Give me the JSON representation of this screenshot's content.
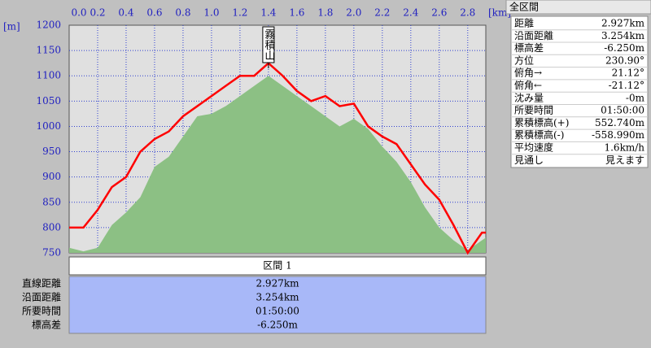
{
  "chart_data": {
    "type": "line",
    "x": [
      0,
      0.1,
      0.2,
      0.3,
      0.4,
      0.5,
      0.6,
      0.7,
      0.8,
      0.9,
      1.0,
      1.1,
      1.2,
      1.3,
      1.4,
      1.5,
      1.6,
      1.7,
      1.8,
      1.9,
      2.0,
      2.1,
      2.2,
      2.3,
      2.4,
      2.5,
      2.6,
      2.7,
      2.8,
      2.9,
      2.927
    ],
    "series": [
      {
        "type": "area",
        "color": "#8cc084",
        "values": [
          760,
          753,
          760,
          805,
          830,
          860,
          920,
          940,
          980,
          1020,
          1025,
          1040,
          1060,
          1080,
          1100,
          1080,
          1060,
          1040,
          1020,
          1000,
          1015,
          995,
          960,
          930,
          890,
          840,
          800,
          775,
          755,
          775,
          780
        ]
      },
      {
        "type": "line",
        "color": "#ff0000",
        "values": [
          800,
          800,
          835,
          880,
          900,
          950,
          975,
          990,
          1020,
          1040,
          1060,
          1080,
          1100,
          1100,
          1125,
          1100,
          1070,
          1050,
          1060,
          1040,
          1045,
          1000,
          980,
          965,
          925,
          885,
          855,
          805,
          750,
          790,
          790
        ]
      }
    ],
    "xlim": [
      0,
      2.927
    ],
    "ylim": [
      750,
      1200
    ],
    "xticks": [
      {
        "value": 0,
        "label": "0.0"
      },
      0.2,
      0.4,
      0.6,
      0.8,
      {
        "value": 1,
        "label": "1.0"
      },
      1.2,
      1.4,
      1.6,
      1.8,
      {
        "value": 2,
        "label": "2.0"
      },
      2.2,
      2.4,
      2.6,
      2.8
    ],
    "yticks": [
      750,
      800,
      850,
      900,
      950,
      1000,
      1050,
      1100,
      1150,
      1200
    ],
    "x_unit": "[km]",
    "y_unit": "[m]",
    "grid": true,
    "annotations": [
      {
        "text": "霧積山",
        "x": 1.4
      }
    ]
  },
  "section_table": {
    "header": "区間 1",
    "rows": [
      [
        "直線距離",
        "2.927km"
      ],
      [
        "沿面距離",
        "3.254km"
      ],
      [
        "所要時間",
        "01:50:00"
      ],
      [
        "標高差",
        "-6.250m"
      ]
    ]
  },
  "summary": {
    "title": "全区間",
    "rows": [
      [
        "距離",
        "2.927km"
      ],
      [
        "沿面距離",
        "3.254km"
      ],
      [
        "標高差",
        "-6.250m"
      ],
      [
        "方位",
        "230.90°"
      ],
      [
        "俯角→",
        "21.12°"
      ],
      [
        "俯角←",
        "-21.12°"
      ],
      [
        "沈み量",
        "-0m"
      ],
      [
        "所要時間",
        "01:50:00"
      ],
      [
        "累積標高(+)",
        "552.740m"
      ],
      [
        "累積標高(-)",
        "-558.990m"
      ],
      [
        "平均速度",
        "1.6km/h"
      ],
      [
        "見通し",
        "見えます"
      ]
    ]
  }
}
